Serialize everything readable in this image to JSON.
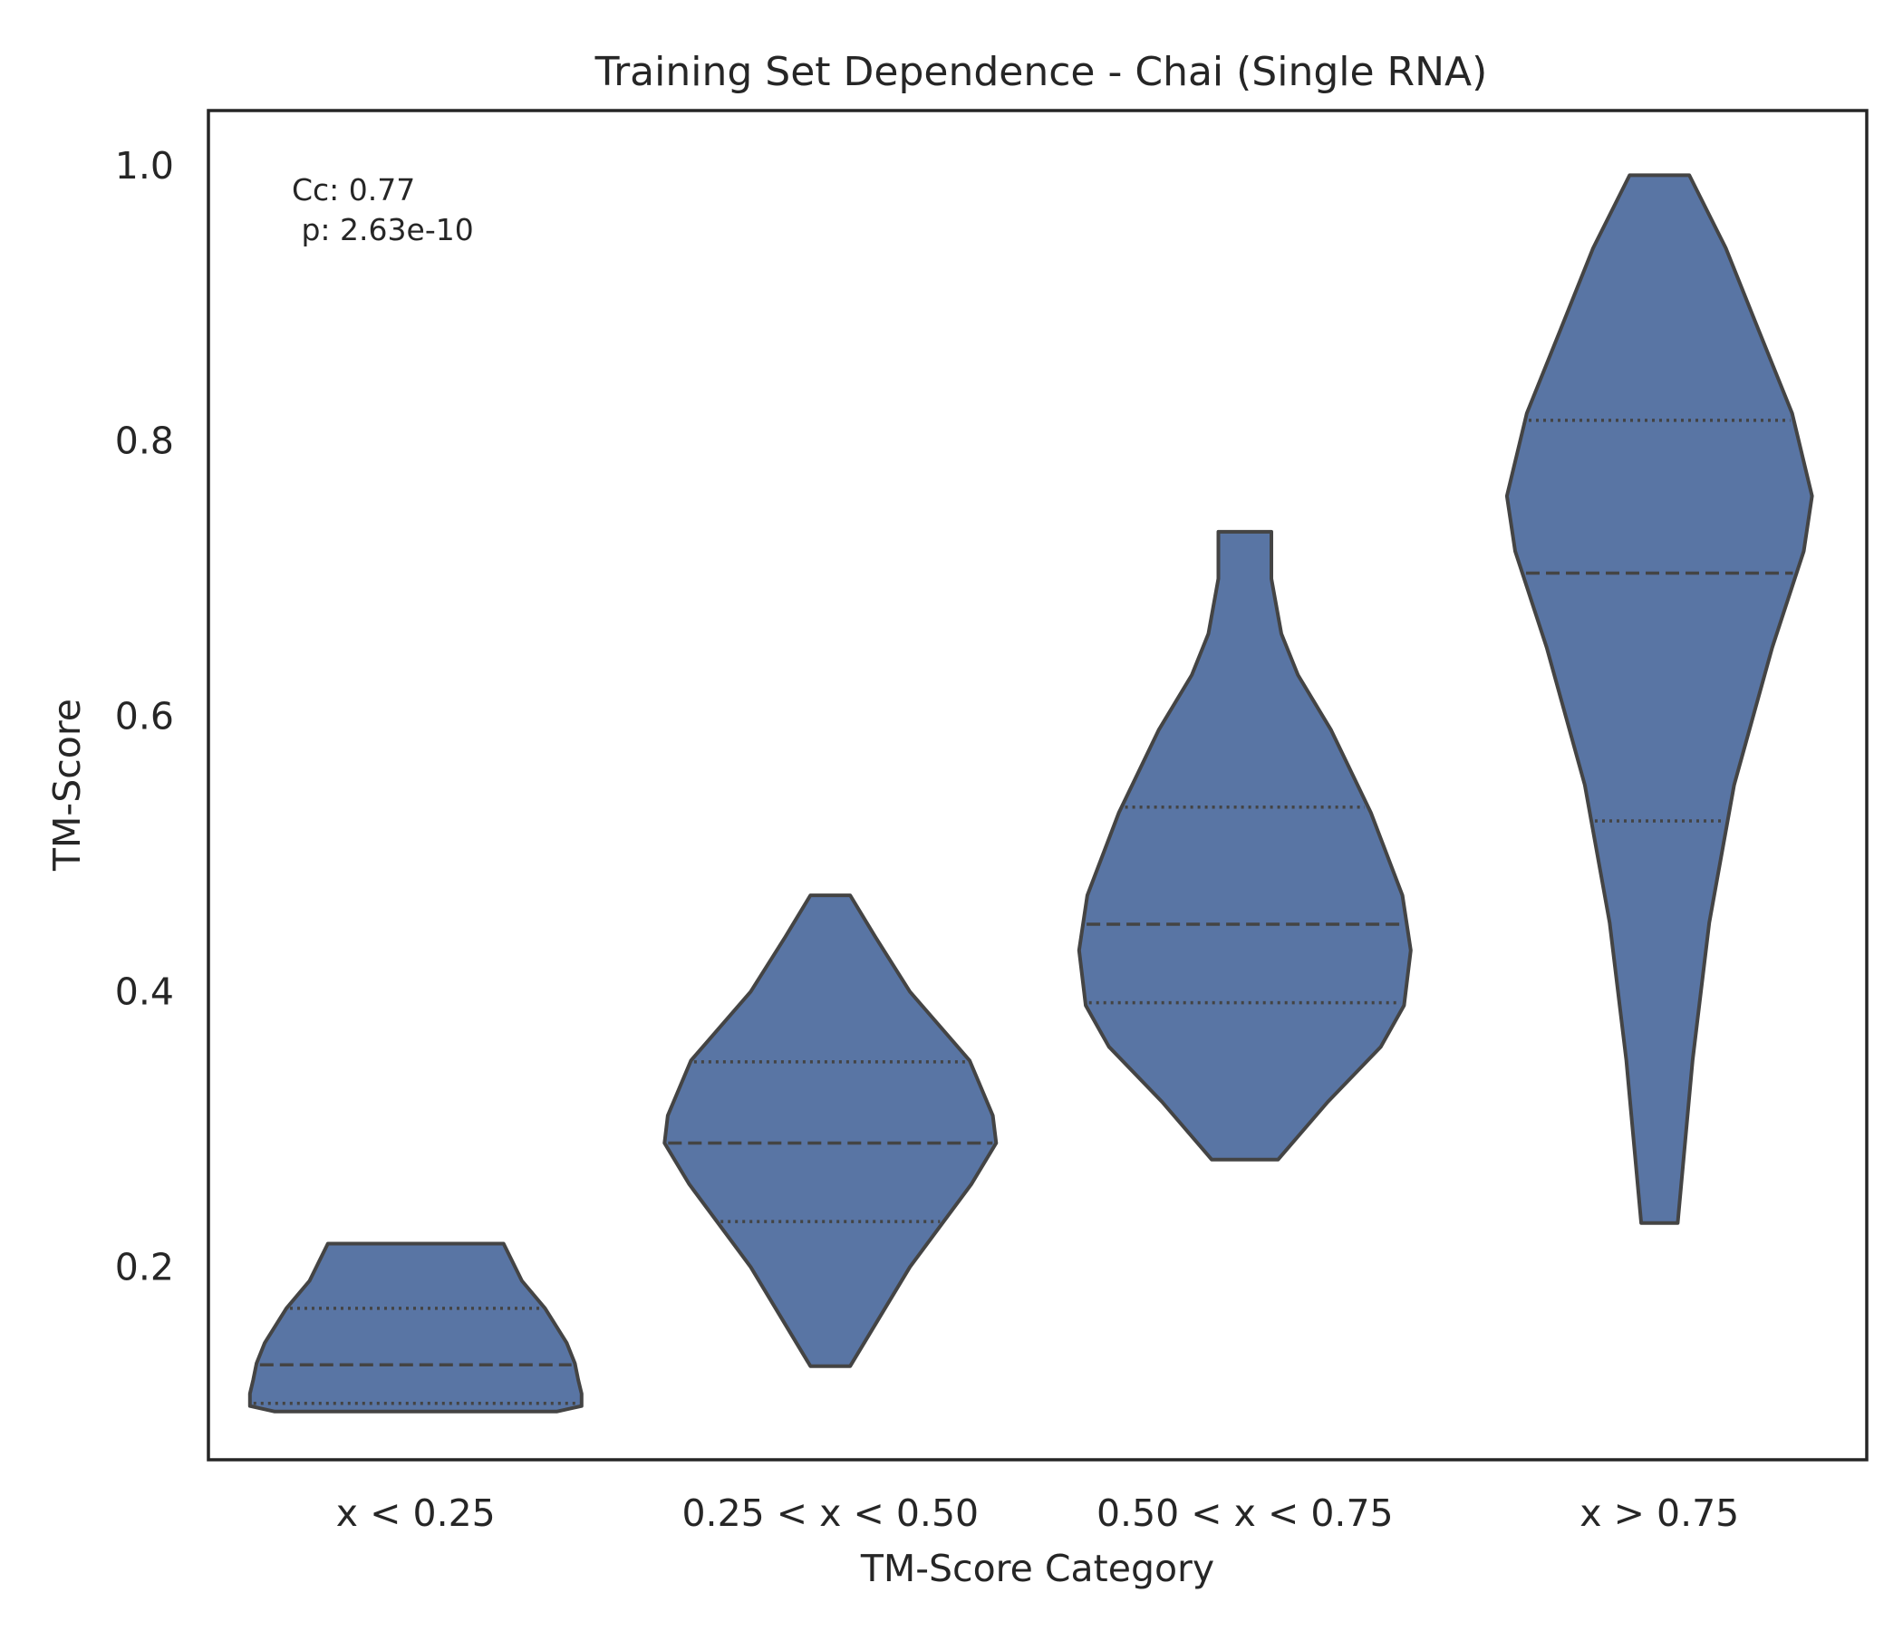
{
  "chart_data": {
    "type": "violin",
    "title": "Training Set Dependence - Chai (Single RNA)",
    "xlabel": "TM-Score Category",
    "ylabel": "TM-Score",
    "ylim": [
      0.06,
      1.04
    ],
    "yticks": [
      0.2,
      0.4,
      0.6,
      0.8,
      1.0
    ],
    "ytick_labels": [
      "0.2",
      "0.4",
      "0.6",
      "0.8",
      "1.0"
    ],
    "grid": false,
    "color": "#5975a4",
    "annotation": [
      "Cc: 0.77",
      " p: 2.63e-10"
    ],
    "categories": [
      "x < 0.25",
      "0.25 < x < 0.50",
      "0.50 < x < 0.75",
      "x > 0.75"
    ],
    "violins": [
      {
        "category": "x < 0.25",
        "min": 0.095,
        "max": 0.217,
        "q1": 0.101,
        "median": 0.129,
        "q3": 0.17,
        "profile": [
          [
            0.095,
            0.85
          ],
          [
            0.099,
            1.0
          ],
          [
            0.108,
            1.0
          ],
          [
            0.118,
            0.98
          ],
          [
            0.13,
            0.96
          ],
          [
            0.145,
            0.91
          ],
          [
            0.17,
            0.78
          ],
          [
            0.19,
            0.64
          ],
          [
            0.217,
            0.53
          ]
        ]
      },
      {
        "category": "0.25 < x < 0.50",
        "min": 0.128,
        "max": 0.47,
        "q1": 0.233,
        "median": 0.29,
        "q3": 0.349,
        "profile": [
          [
            0.128,
            0.12
          ],
          [
            0.2,
            0.48
          ],
          [
            0.26,
            0.85
          ],
          [
            0.29,
            1.0
          ],
          [
            0.31,
            0.98
          ],
          [
            0.35,
            0.84
          ],
          [
            0.4,
            0.48
          ],
          [
            0.44,
            0.27
          ],
          [
            0.47,
            0.12
          ]
        ]
      },
      {
        "category": "0.50 < x < 0.75",
        "min": 0.278,
        "max": 0.734,
        "q1": 0.392,
        "median": 0.449,
        "q3": 0.534,
        "profile": [
          [
            0.278,
            0.2
          ],
          [
            0.32,
            0.5
          ],
          [
            0.36,
            0.82
          ],
          [
            0.39,
            0.96
          ],
          [
            0.43,
            1.0
          ],
          [
            0.47,
            0.95
          ],
          [
            0.53,
            0.76
          ],
          [
            0.59,
            0.52
          ],
          [
            0.63,
            0.32
          ],
          [
            0.66,
            0.22
          ],
          [
            0.7,
            0.16
          ],
          [
            0.734,
            0.16
          ]
        ]
      },
      {
        "category": "x > 0.75",
        "min": 0.232,
        "max": 0.993,
        "q1": 0.524,
        "median": 0.704,
        "q3": 0.815,
        "profile": [
          [
            0.232,
            0.11
          ],
          [
            0.35,
            0.2
          ],
          [
            0.45,
            0.3
          ],
          [
            0.55,
            0.45
          ],
          [
            0.65,
            0.68
          ],
          [
            0.72,
            0.87
          ],
          [
            0.76,
            0.92
          ],
          [
            0.82,
            0.8
          ],
          [
            0.88,
            0.6
          ],
          [
            0.94,
            0.4
          ],
          [
            0.993,
            0.18
          ]
        ]
      }
    ]
  }
}
